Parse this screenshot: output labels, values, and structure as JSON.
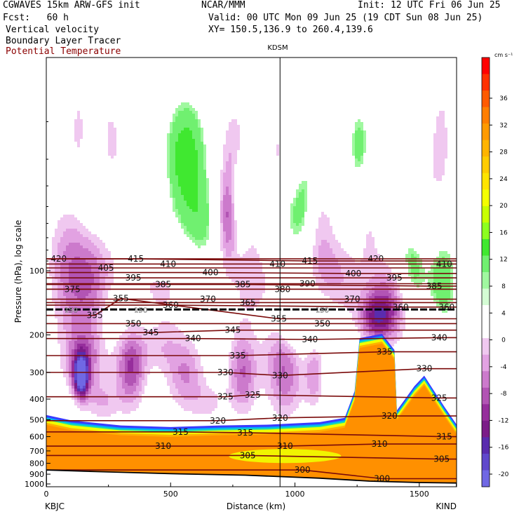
{
  "header": {
    "model": "CGWAVES 15km ARW-GFS init",
    "forecast": "Fcst:   60 h",
    "field1": "Vertical velocity",
    "field2": "Boundary Layer Tracer",
    "field3": "Potential Temperature",
    "org": "NCAR/MMM",
    "init": "Init: 12 UTC Fri 06 Jun 25",
    "valid": "Valid: 00 UTC Mon 09 Jun 25 (19 CDT Sun 08 Jun 25)",
    "xy": "XY= 150.5,136.9 to 260.4,139.6"
  },
  "colors": {
    "field3_text": "#8b0000",
    "theta_contour": "#7a0a0a",
    "surface_fill": "#ffffff"
  },
  "chart_data": {
    "type": "heatmap",
    "title": "",
    "xlabel": "Distance (km)",
    "ylabel": "Pressure (hPa), log scale",
    "x_scale": "linear",
    "y_scale": "log",
    "xlim": [
      0,
      1650
    ],
    "ylim": [
      1050,
      14
    ],
    "x_ticks": [
      0,
      500,
      1000,
      1500
    ],
    "y_ticks": [
      100,
      200,
      300,
      400,
      500,
      600,
      700,
      800,
      900,
      1000
    ],
    "endpoint_labels": {
      "left": "KBJC",
      "right": "KIND"
    },
    "station_marker": {
      "label": "KDSM",
      "x": 940
    },
    "colorbar": {
      "unit": "cm s⁻¹",
      "labels": [
        36,
        32,
        28,
        24,
        20,
        16,
        12,
        8,
        4,
        0,
        -4,
        -8,
        -12,
        -16,
        -20
      ],
      "colors": [
        "#ff0000",
        "#ff3000",
        "#ff5a00",
        "#ff7e00",
        "#ff9a00",
        "#ffb400",
        "#ffcc00",
        "#ffe400",
        "#f4ff00",
        "#c8ff00",
        "#8cff20",
        "#40e830",
        "#70f070",
        "#a0f8a0",
        "#d4fcd4",
        "#ffffff",
        "#ffffff",
        "#f0c8f0",
        "#e2a2e2",
        "#cc7acc",
        "#b254b4",
        "#962e9c",
        "#7c1c88",
        "#5a2cae",
        "#6048cc",
        "#7068e4"
      ]
    },
    "tracer_threshold_label": "150",
    "theta_contours": [
      {
        "theta": 420,
        "label_points": [
          [
            50,
            88
          ],
          [
            1325,
            88
          ]
        ]
      },
      {
        "theta": 415,
        "label_points": [
          [
            360,
            88
          ],
          [
            1060,
            90
          ]
        ]
      },
      {
        "theta": 410,
        "label_points": [
          [
            490,
            93
          ],
          [
            930,
            93
          ],
          [
            1600,
            93
          ]
        ]
      },
      {
        "theta": 405,
        "label_points": [
          [
            240,
            97
          ]
        ]
      },
      {
        "theta": 400,
        "label_points": [
          [
            660,
            102
          ],
          [
            1235,
            103
          ]
        ]
      },
      {
        "theta": 395,
        "label_points": [
          [
            350,
            108
          ],
          [
            1400,
            108
          ]
        ]
      },
      {
        "theta": 390,
        "label_points": [
          [
            1050,
            115
          ]
        ]
      },
      {
        "theta": 385,
        "label_points": [
          [
            470,
            116
          ],
          [
            790,
            116
          ],
          [
            1560,
            118
          ]
        ]
      },
      {
        "theta": 380,
        "label_points": [
          [
            950,
            122
          ]
        ]
      },
      {
        "theta": 375,
        "label_points": [
          [
            105,
            122
          ]
        ]
      },
      {
        "theta": 370,
        "label_points": [
          [
            650,
            136
          ],
          [
            1230,
            136
          ]
        ]
      },
      {
        "theta": 365,
        "label_points": [
          [
            810,
            141
          ]
        ]
      },
      {
        "theta": 360,
        "label_points": [
          [
            500,
            145
          ],
          [
            1425,
            148
          ],
          [
            1610,
            148
          ]
        ]
      },
      {
        "theta": 355,
        "label_points": [
          [
            195,
            162
          ],
          [
            935,
            168
          ],
          [
            300,
            135
          ]
        ]
      },
      {
        "theta": 350,
        "label_points": [
          [
            350,
            177
          ],
          [
            1110,
            177
          ]
        ]
      },
      {
        "theta": 345,
        "label_points": [
          [
            420,
            195
          ],
          [
            750,
            190
          ]
        ]
      },
      {
        "theta": 340,
        "label_points": [
          [
            590,
            208
          ],
          [
            1060,
            210
          ],
          [
            1580,
            206
          ]
        ]
      },
      {
        "theta": 335,
        "label_points": [
          [
            770,
            250
          ],
          [
            1360,
            240
          ]
        ]
      },
      {
        "theta": 330,
        "label_points": [
          [
            720,
            300
          ],
          [
            940,
            310
          ],
          [
            1520,
            288
          ]
        ]
      },
      {
        "theta": 325,
        "label_points": [
          [
            720,
            390
          ],
          [
            830,
            382
          ],
          [
            1580,
            395
          ]
        ]
      },
      {
        "theta": 320,
        "label_points": [
          [
            690,
            505
          ],
          [
            940,
            490
          ],
          [
            1380,
            480
          ]
        ]
      },
      {
        "theta": 315,
        "label_points": [
          [
            540,
            570
          ],
          [
            800,
            575
          ],
          [
            1600,
            600
          ]
        ]
      },
      {
        "theta": 310,
        "label_points": [
          [
            470,
            665
          ],
          [
            960,
            665
          ],
          [
            1340,
            650
          ]
        ]
      },
      {
        "theta": 305,
        "label_points": [
          [
            810,
            735
          ],
          [
            1590,
            765
          ]
        ]
      },
      {
        "theta": 300,
        "label_points": [
          [
            1030,
            860
          ],
          [
            1350,
            945
          ]
        ]
      }
    ],
    "blobs": [
      {
        "x": 890,
        "p": 47,
        "rx": 70,
        "rp": 0.3,
        "w": 10
      },
      {
        "x": 560,
        "p": 29,
        "rx": 85,
        "rp": 0.28,
        "w": 9
      },
      {
        "x": 760,
        "p": 28,
        "rx": 55,
        "rp": 0.22,
        "w": -8
      },
      {
        "x": 920,
        "p": 32,
        "rx": 55,
        "rp": 0.24,
        "w": -9
      },
      {
        "x": 730,
        "p": 54,
        "rx": 40,
        "rp": 0.22,
        "w": -12
      },
      {
        "x": 770,
        "p": 40,
        "rx": 50,
        "rp": 0.22,
        "w": 7
      },
      {
        "x": 1020,
        "p": 45,
        "rx": 60,
        "rp": 0.26,
        "w": 8
      },
      {
        "x": 1000,
        "p": 32,
        "rx": 40,
        "rp": 0.2,
        "w": -5
      },
      {
        "x": 1260,
        "p": 26,
        "rx": 45,
        "rp": 0.2,
        "w": 6
      },
      {
        "x": 130,
        "p": 22,
        "rx": 30,
        "rp": 0.2,
        "w": -5
      },
      {
        "x": 260,
        "p": 26,
        "rx": 40,
        "rp": 0.2,
        "w": -6
      },
      {
        "x": 220,
        "p": 40,
        "rx": 70,
        "rp": 0.2,
        "w": 4
      },
      {
        "x": 360,
        "p": 48,
        "rx": 90,
        "rp": 0.2,
        "w": -4
      },
      {
        "x": 850,
        "p": 60,
        "rx": 60,
        "rp": 0.25,
        "w": -6
      },
      {
        "x": 420,
        "p": 74,
        "rx": 100,
        "rp": 0.2,
        "w": 4
      },
      {
        "x": 620,
        "p": 62,
        "rx": 80,
        "rp": 0.22,
        "w": 5
      },
      {
        "x": 1100,
        "p": 68,
        "rx": 60,
        "rp": 0.3,
        "w": -5
      },
      {
        "x": 1310,
        "p": 60,
        "rx": 50,
        "rp": 0.3,
        "w": -4
      },
      {
        "x": 1520,
        "p": 50,
        "rx": 50,
        "rp": 0.4,
        "w": -4
      },
      {
        "x": 1350,
        "p": 43,
        "rx": 40,
        "rp": 0.2,
        "w": 5
      },
      {
        "x": 1590,
        "p": 25,
        "rx": 40,
        "rp": 0.3,
        "w": -5
      },
      {
        "x": 80,
        "p": 96,
        "rx": 80,
        "rp": 0.3,
        "w": -7
      },
      {
        "x": 180,
        "p": 113,
        "rx": 90,
        "rp": 0.25,
        "w": -9
      },
      {
        "x": 430,
        "p": 115,
        "rx": 150,
        "rp": 0.22,
        "w": -6
      },
      {
        "x": 840,
        "p": 110,
        "rx": 120,
        "rp": 0.2,
        "w": -5
      },
      {
        "x": 1180,
        "p": 112,
        "rx": 100,
        "rp": 0.22,
        "w": -6
      },
      {
        "x": 1400,
        "p": 130,
        "rx": 80,
        "rp": 0.22,
        "w": -9
      },
      {
        "x": 1470,
        "p": 100,
        "rx": 80,
        "rp": 0.2,
        "w": 9
      },
      {
        "x": 1600,
        "p": 112,
        "rx": 60,
        "rp": 0.22,
        "w": 6
      },
      {
        "x": 1330,
        "p": 165,
        "rx": 70,
        "rp": 0.12,
        "w": -13
      },
      {
        "x": 300,
        "p": 160,
        "rx": 120,
        "rp": 0.15,
        "w": 4
      },
      {
        "x": 1080,
        "p": 170,
        "rx": 100,
        "rp": 0.15,
        "w": 4
      },
      {
        "x": 150,
        "p": 260,
        "rx": 90,
        "rp": 0.18,
        "w": -9
      },
      {
        "x": 140,
        "p": 310,
        "rx": 30,
        "rp": 0.1,
        "w": -20
      },
      {
        "x": 340,
        "p": 280,
        "rx": 60,
        "rp": 0.2,
        "w": -12
      },
      {
        "x": 560,
        "p": 310,
        "rx": 80,
        "rp": 0.18,
        "w": -8
      },
      {
        "x": 790,
        "p": 300,
        "rx": 60,
        "rp": 0.2,
        "w": -10
      },
      {
        "x": 960,
        "p": 320,
        "rx": 80,
        "rp": 0.2,
        "w": -9
      },
      {
        "x": 1080,
        "p": 300,
        "rx": 40,
        "rp": 0.18,
        "w": -7
      },
      {
        "x": 460,
        "p": 230,
        "rx": 80,
        "rp": 0.12,
        "w": -4
      },
      {
        "x": 950,
        "p": 230,
        "rx": 80,
        "rp": 0.12,
        "w": -4
      },
      {
        "x": 660,
        "p": 420,
        "rx": 70,
        "rp": 0.1,
        "w": -4
      },
      {
        "x": 230,
        "p": 420,
        "rx": 70,
        "rp": 0.1,
        "w": -5
      },
      {
        "x": 1000,
        "p": 200,
        "rx": 70,
        "rp": 0.12,
        "w": 4
      }
    ],
    "boundary_layer_top": [
      [
        0,
        505
      ],
      [
        100,
        535
      ],
      [
        300,
        565
      ],
      [
        500,
        575
      ],
      [
        700,
        565
      ],
      [
        900,
        560
      ],
      [
        1100,
        545
      ],
      [
        1200,
        520
      ],
      [
        1240,
        390
      ],
      [
        1260,
        220
      ],
      [
        1350,
        210
      ],
      [
        1400,
        250
      ],
      [
        1410,
        480
      ],
      [
        1440,
        430
      ],
      [
        1480,
        370
      ],
      [
        1520,
        330
      ],
      [
        1560,
        390
      ],
      [
        1600,
        460
      ],
      [
        1650,
        560
      ]
    ],
    "terrain_surface": [
      [
        0,
        860
      ],
      [
        200,
        875
      ],
      [
        500,
        895
      ],
      [
        800,
        910
      ],
      [
        1100,
        940
      ],
      [
        1300,
        970
      ],
      [
        1500,
        985
      ],
      [
        1650,
        990
      ]
    ]
  }
}
